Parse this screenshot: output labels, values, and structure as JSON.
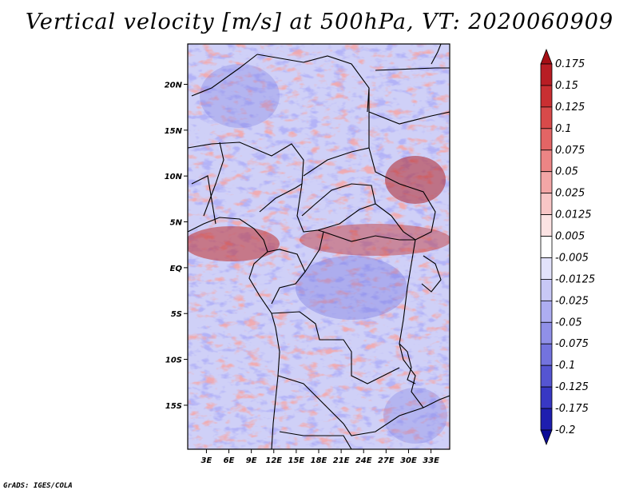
{
  "title": "Vertical velocity [m/s] at 500hPa, VT: 2020060909",
  "credit": "GrADS: IGES/COLA",
  "lat_labels": [
    "20N",
    "15N",
    "10N",
    "5N",
    "EQ",
    "5S",
    "10S",
    "15S"
  ],
  "lat_values": [
    20,
    15,
    10,
    5,
    0,
    -5,
    -10,
    -15
  ],
  "lon_labels": [
    "3E",
    "6E",
    "9E",
    "12E",
    "15E",
    "18E",
    "21E",
    "24E",
    "27E",
    "30E",
    "33E"
  ],
  "lon_values": [
    3,
    6,
    9,
    12,
    15,
    18,
    21,
    24,
    27,
    30,
    33
  ],
  "extent": {
    "lon_min": 0.5,
    "lon_max": 35.5,
    "lat_min": -19.8,
    "lat_max": 24.4
  },
  "colorbar": {
    "labels": [
      "0.175",
      "0.15",
      "0.125",
      "0.1",
      "0.075",
      "0.05",
      "0.025",
      "0.0125",
      "0.005",
      "-0.005",
      "-0.0125",
      "-0.025",
      "-0.05",
      "-0.075",
      "-0.1",
      "-0.125",
      "-0.175",
      "-0.2"
    ],
    "colors": [
      "#a50f15",
      "#b81d24",
      "#c92f32",
      "#d84a4a",
      "#e36565",
      "#ec8585",
      "#f3a6a6",
      "#f8c6c6",
      "#fce3e3",
      "#ffffff",
      "#e2e2fb",
      "#c8c8f6",
      "#adadf1",
      "#9090e8",
      "#7373de",
      "#5555d2",
      "#3838c4",
      "#1e1eaf",
      "#0b0b96"
    ]
  }
}
